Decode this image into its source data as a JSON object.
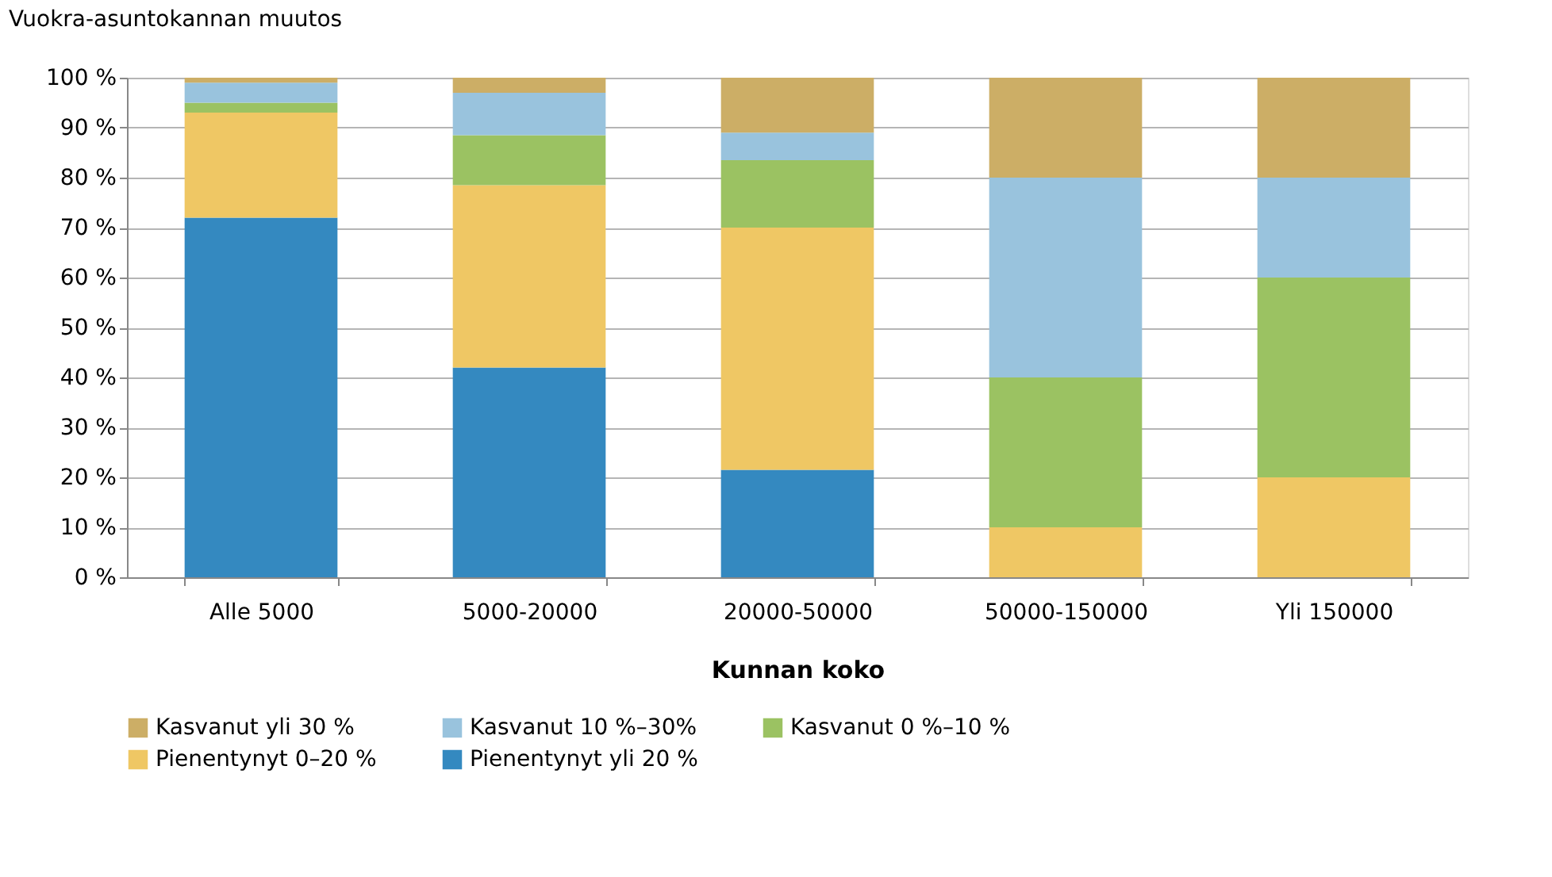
{
  "chart_data": {
    "type": "bar",
    "stacked": true,
    "ylabel": "Vuokra-asuntokannan muutos",
    "xlabel": "Kunnan koko",
    "categories": [
      "Alle 5000",
      "5000-20000",
      "20000-50000",
      "50000-150000",
      "Yli 150000"
    ],
    "series": [
      {
        "name": "Pienentynyt yli 20 %",
        "color": "#3489c0",
        "values": [
          72,
          42,
          21.5,
          0,
          0
        ]
      },
      {
        "name": "Pienentynyt 0–20 %",
        "color": "#efc764",
        "values": [
          21,
          36.5,
          48.5,
          10,
          20
        ]
      },
      {
        "name": "Kasvanut 0 %–10 %",
        "color": "#9bc262",
        "values": [
          2,
          10,
          13.5,
          30,
          40
        ]
      },
      {
        "name": "Kasvanut 10 %–30%",
        "color": "#99c3dd",
        "values": [
          4,
          8.5,
          5.5,
          40,
          20
        ]
      },
      {
        "name": "Kasvanut yli 30 %",
        "color": "#ccae66",
        "values": [
          1,
          3,
          11,
          20,
          20
        ]
      }
    ],
    "ylim": [
      0,
      100
    ],
    "yticks": [
      {
        "value": 0,
        "label": "0 %"
      },
      {
        "value": 10,
        "label": "10 %"
      },
      {
        "value": 20,
        "label": "20 %"
      },
      {
        "value": 30,
        "label": "30 %"
      },
      {
        "value": 40,
        "label": "40 %"
      },
      {
        "value": 50,
        "label": "50 %"
      },
      {
        "value": 60,
        "label": "60 %"
      },
      {
        "value": 70,
        "label": "70 %"
      },
      {
        "value": 80,
        "label": "80 %"
      },
      {
        "value": 90,
        "label": "90 %"
      },
      {
        "value": 100,
        "label": "100 %"
      }
    ],
    "grid": "y",
    "legend": "bottom"
  }
}
